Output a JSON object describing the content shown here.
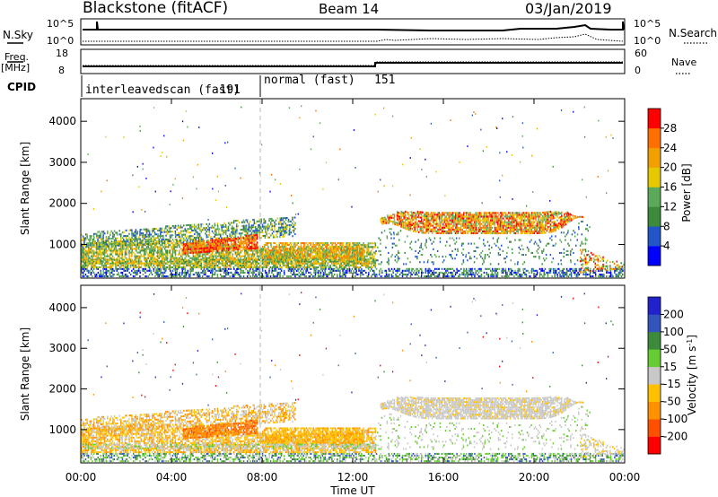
{
  "header": {
    "station": "Blackstone (fitACF)",
    "beam": "Beam 14",
    "date": "03/Jan/2019"
  },
  "summary": {
    "nsky_label": "N.Sky",
    "nsearch_label": "N.Search",
    "freq_label_top": "Freq.",
    "freq_label_unit": "[MHz]",
    "nave_label": "Nave",
    "cpid_label": "CPID",
    "n_ticks": [
      "10^5",
      "10^0"
    ],
    "freq_ticks": [
      "18",
      "8"
    ],
    "nave_ticks": [
      "60",
      "0"
    ],
    "cpid_segments": [
      {
        "name": "interleavedscan (fast)",
        "id": "191",
        "start_hour": 0
      },
      {
        "name": "normal (fast)",
        "id": "151",
        "start_hour": 8
      }
    ]
  },
  "colors": {
    "power_scale": [
      "#0000ff",
      "#2255c8",
      "#3c8a3c",
      "#5aaa5a",
      "#e6c800",
      "#f0a000",
      "#ff7000",
      "#ff0000"
    ],
    "velocity_scale": [
      "#ff0000",
      "#ff5000",
      "#ff9000",
      "#ffc000",
      "#c8c8c8",
      "#66cc33",
      "#3c8a3c",
      "#3355bb",
      "#2222cc"
    ]
  },
  "chart_data": [
    {
      "type": "heatmap",
      "panel": "power",
      "ylabel": "Slant Range [km]",
      "xlabel": "",
      "xlim": [
        0,
        24
      ],
      "ylim": [
        180,
        4550
      ],
      "yticks": [
        "1000",
        "2000",
        "3000",
        "4000"
      ],
      "colorbar_label": "Power [dB]",
      "colorbar_ticks": [
        "4",
        "8",
        "12",
        "16",
        "20",
        "24",
        "28"
      ],
      "colorbar_range": [
        0,
        32
      ]
    },
    {
      "type": "heatmap",
      "panel": "velocity",
      "ylabel": "Slant Range [km]",
      "xlabel": "Time UT",
      "xlim": [
        0,
        24
      ],
      "ylim": [
        180,
        4550
      ],
      "xticks": [
        "00:00",
        "04:00",
        "08:00",
        "12:00",
        "16:00",
        "20:00",
        "00:00"
      ],
      "yticks": [
        "1000",
        "2000",
        "3000",
        "4000"
      ],
      "colorbar_label": "Velocity [m s⁻¹]",
      "colorbar_ticks": [
        "200",
        "100",
        "50",
        "15",
        "-15",
        "-50",
        "-100",
        "-200"
      ]
    }
  ]
}
